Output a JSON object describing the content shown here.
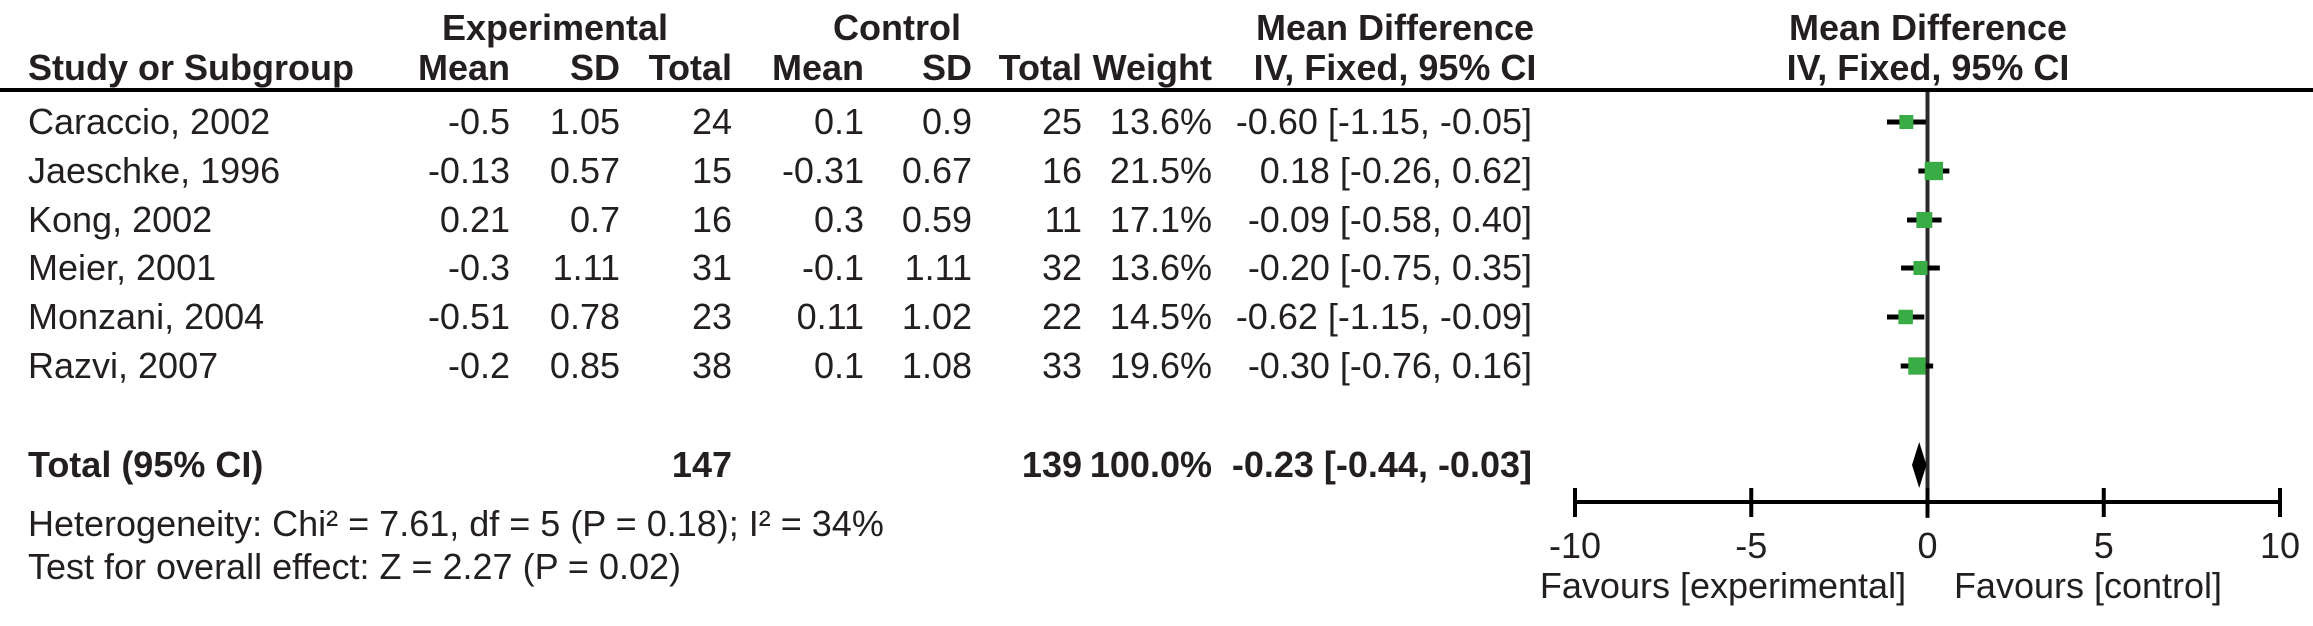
{
  "table": {
    "headers": {
      "group_experimental": "Experimental",
      "group_control": "Control",
      "md_text_title": "Mean Difference",
      "md_text_subtitle": "IV, Fixed, 95% CI",
      "md_plot_title": "Mean Difference",
      "md_plot_subtitle": "IV, Fixed, 95% CI",
      "study": "Study or Subgroup",
      "exp_mean": "Mean",
      "exp_sd": "SD",
      "exp_total": "Total",
      "ctrl_mean": "Mean",
      "ctrl_sd": "SD",
      "ctrl_total": "Total",
      "weight": "Weight"
    },
    "rows": [
      {
        "study": "Caraccio, 2002",
        "exp_mean": "-0.5",
        "exp_sd": "1.05",
        "exp_total": "24",
        "ctrl_mean": "0.1",
        "ctrl_sd": "0.9",
        "ctrl_total": "25",
        "weight": "13.6%",
        "md_ci": "-0.60 [-1.15, -0.05]"
      },
      {
        "study": "Jaeschke, 1996",
        "exp_mean": "-0.13",
        "exp_sd": "0.57",
        "exp_total": "15",
        "ctrl_mean": "-0.31",
        "ctrl_sd": "0.67",
        "ctrl_total": "16",
        "weight": "21.5%",
        "md_ci": "0.18 [-0.26, 0.62]"
      },
      {
        "study": "Kong, 2002",
        "exp_mean": "0.21",
        "exp_sd": "0.7",
        "exp_total": "16",
        "ctrl_mean": "0.3",
        "ctrl_sd": "0.59",
        "ctrl_total": "11",
        "weight": "17.1%",
        "md_ci": "-0.09 [-0.58, 0.40]"
      },
      {
        "study": "Meier, 2001",
        "exp_mean": "-0.3",
        "exp_sd": "1.11",
        "exp_total": "31",
        "ctrl_mean": "-0.1",
        "ctrl_sd": "1.11",
        "ctrl_total": "32",
        "weight": "13.6%",
        "md_ci": "-0.20 [-0.75, 0.35]"
      },
      {
        "study": "Monzani, 2004",
        "exp_mean": "-0.51",
        "exp_sd": "0.78",
        "exp_total": "23",
        "ctrl_mean": "0.11",
        "ctrl_sd": "1.02",
        "ctrl_total": "22",
        "weight": "14.5%",
        "md_ci": "-0.62 [-1.15, -0.09]"
      },
      {
        "study": "Razvi, 2007",
        "exp_mean": "-0.2",
        "exp_sd": "0.85",
        "exp_total": "38",
        "ctrl_mean": "0.1",
        "ctrl_sd": "1.08",
        "ctrl_total": "33",
        "weight": "19.6%",
        "md_ci": "-0.30 [-0.76, 0.16]"
      }
    ],
    "total_row": {
      "label": "Total (95% CI)",
      "exp_total": "147",
      "ctrl_total": "139",
      "weight": "100.0%",
      "md_ci": "-0.23 [-0.44, -0.03]"
    },
    "footer": {
      "heterogeneity": "Heterogeneity: Chi² = 7.61, df = 5 (P = 0.18); I² = 34%",
      "overall_effect": "Test for overall effect: Z = 2.27 (P = 0.02)"
    }
  },
  "chart_data": {
    "type": "forest",
    "effect_measure": "Mean Difference",
    "model": "IV, Fixed, 95% CI",
    "x_axis": {
      "min": -10,
      "max": 10,
      "ticks": [
        -10,
        -5,
        0,
        5,
        10
      ]
    },
    "studies": [
      {
        "name": "Caraccio, 2002",
        "md": -0.6,
        "ci_low": -1.15,
        "ci_high": -0.05,
        "weight": 13.6
      },
      {
        "name": "Jaeschke, 1996",
        "md": 0.18,
        "ci_low": -0.26,
        "ci_high": 0.62,
        "weight": 21.5
      },
      {
        "name": "Kong, 2002",
        "md": -0.09,
        "ci_low": -0.58,
        "ci_high": 0.4,
        "weight": 17.1
      },
      {
        "name": "Meier, 2001",
        "md": -0.2,
        "ci_low": -0.75,
        "ci_high": 0.35,
        "weight": 13.6
      },
      {
        "name": "Monzani, 2004",
        "md": -0.62,
        "ci_low": -1.15,
        "ci_high": -0.09,
        "weight": 14.5
      },
      {
        "name": "Razvi, 2007",
        "md": -0.3,
        "ci_low": -0.76,
        "ci_high": 0.16,
        "weight": 19.6
      }
    ],
    "total": {
      "md": -0.23,
      "ci_low": -0.44,
      "ci_high": -0.03
    },
    "favours_left": "Favours [experimental]",
    "favours_right": "Favours [control]",
    "marker_color": "#3AAC46",
    "line_color": "#000000",
    "text_color": "#231f20"
  }
}
